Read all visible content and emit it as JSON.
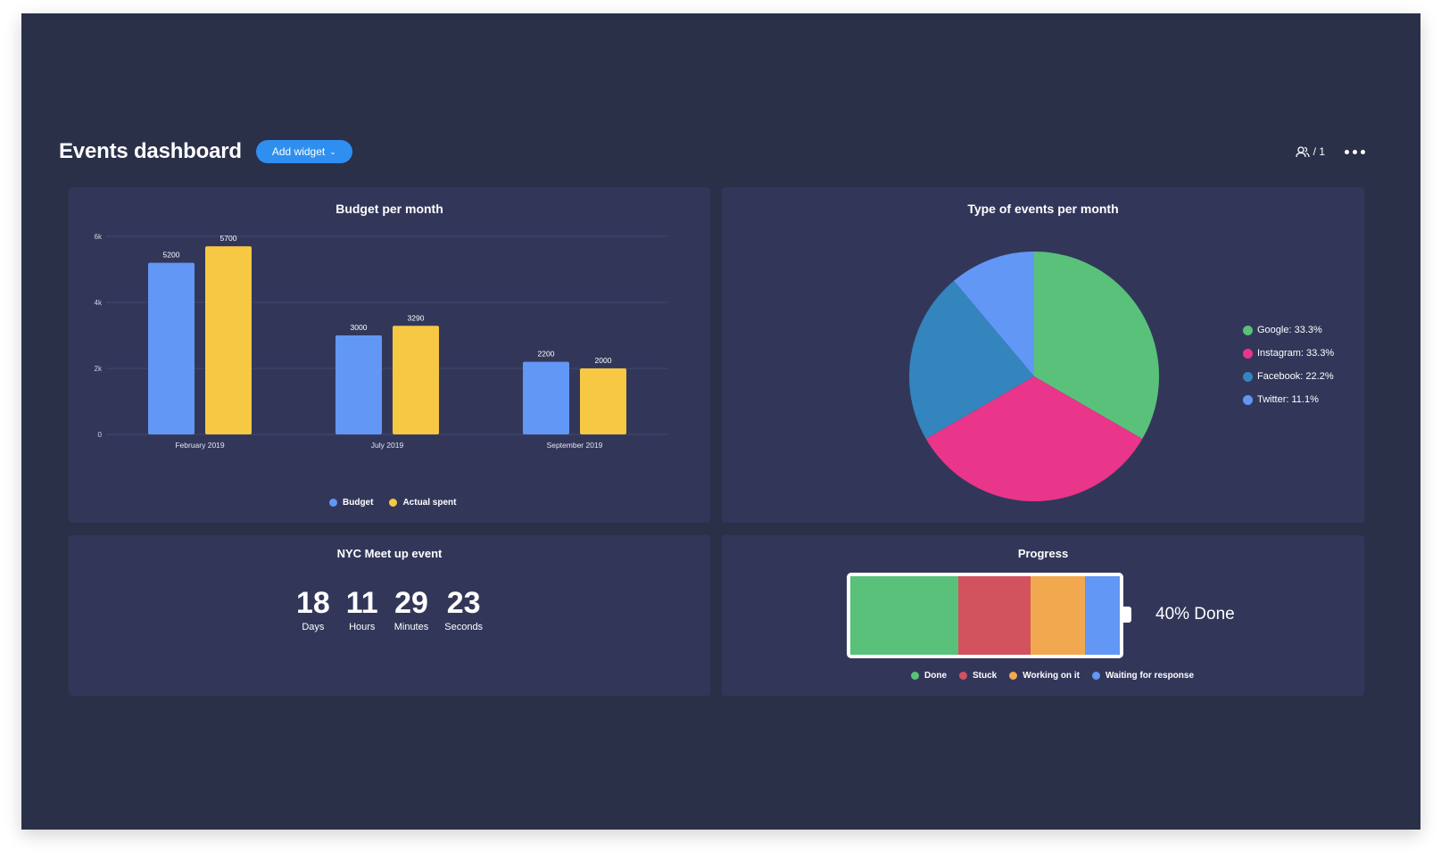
{
  "header": {
    "title": "Events dashboard",
    "add_widget_label": "Add widget",
    "members_count": "/ 1"
  },
  "budget_widget": {
    "title": "Budget per month",
    "legend": [
      {
        "label": "Budget",
        "color": "#6297f5"
      },
      {
        "label": "Actual spent",
        "color": "#f7c843"
      }
    ]
  },
  "events_widget": {
    "title": "Type of events per month",
    "legend": [
      {
        "label": "Google: 33.3%",
        "color": "#59c17a"
      },
      {
        "label": "Instagram: 33.3%",
        "color": "#e9358a"
      },
      {
        "label": "Facebook: 22.2%",
        "color": "#3484bd"
      },
      {
        "label": "Twitter: 11.1%",
        "color": "#6297f5"
      }
    ]
  },
  "countdown_widget": {
    "title": "NYC Meet up event",
    "units": [
      {
        "value": "18",
        "label": "Days"
      },
      {
        "value": "11",
        "label": "Hours"
      },
      {
        "value": "29",
        "label": "Minutes"
      },
      {
        "value": "23",
        "label": "Seconds"
      }
    ]
  },
  "progress_widget": {
    "title": "Progress",
    "done_text": "40% Done",
    "segments": [
      {
        "label": "Done",
        "fraction": 0.4,
        "color": "#59c17a"
      },
      {
        "label": "Stuck",
        "fraction": 0.27,
        "color": "#d2525e"
      },
      {
        "label": "Working on it",
        "fraction": 0.2,
        "color": "#f2a84e"
      },
      {
        "label": "Waiting for response",
        "fraction": 0.13,
        "color": "#6297f5"
      }
    ]
  },
  "chart_data": [
    {
      "type": "bar",
      "title": "Budget per month",
      "categories": [
        "February 2019",
        "July 2019",
        "September 2019"
      ],
      "series": [
        {
          "name": "Budget",
          "values": [
            5200,
            3000,
            2200
          ],
          "color": "#6297f5"
        },
        {
          "name": "Actual spent",
          "values": [
            5700,
            3290,
            2000
          ],
          "color": "#f7c843"
        }
      ],
      "yticks": [
        {
          "value": 0,
          "label": "0"
        },
        {
          "value": 2000,
          "label": "2k"
        },
        {
          "value": 4000,
          "label": "4k"
        },
        {
          "value": 6000,
          "label": "6k"
        }
      ],
      "ylim": [
        0,
        6000
      ],
      "grid": true,
      "legend": "bottom"
    },
    {
      "type": "pie",
      "title": "Type of events per month",
      "slices": [
        {
          "label": "Google",
          "value": 33.3,
          "color": "#59c17a"
        },
        {
          "label": "Instagram",
          "value": 33.3,
          "color": "#e9358a"
        },
        {
          "label": "Facebook",
          "value": 22.2,
          "color": "#3484bd"
        },
        {
          "label": "Twitter",
          "value": 11.1,
          "color": "#6297f5"
        }
      ],
      "legend": "right"
    }
  ]
}
